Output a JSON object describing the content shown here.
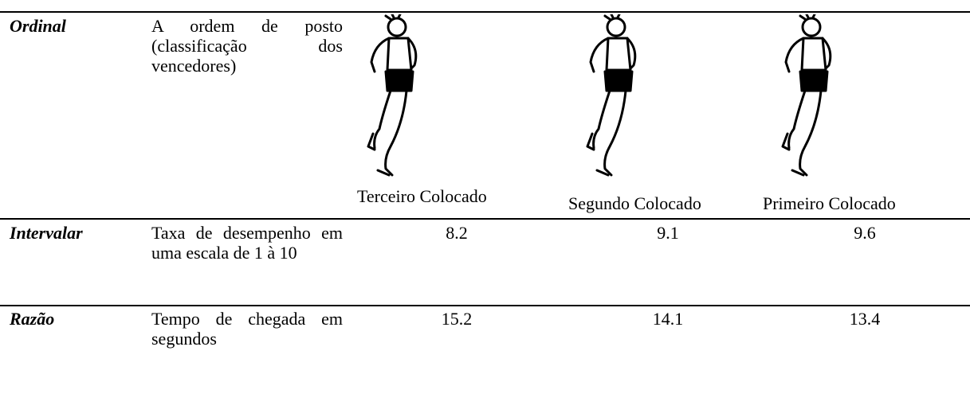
{
  "table": {
    "rows": [
      [
        "Ordinal",
        "A ordem de posto (classificação dos vencedores)",
        "Terceiro Colocado",
        "Segundo Colocado",
        "Primeiro Colocado"
      ],
      [
        "Intervalar",
        "Taxa de desempenho em uma escala de 1 à 10",
        8.2,
        9.1,
        9.6
      ],
      [
        "Razão",
        "Tempo de chegada em segundos",
        15.2,
        14.1,
        13.4
      ]
    ]
  }
}
